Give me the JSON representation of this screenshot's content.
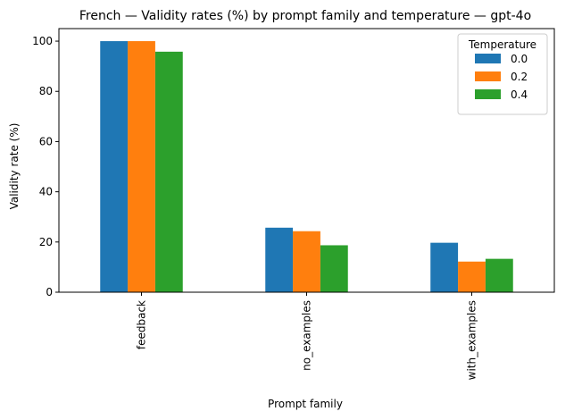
{
  "chart_data": {
    "type": "bar",
    "title": "French — Validity rates (%) by prompt family and temperature — gpt-4o",
    "xlabel": "Prompt family",
    "ylabel": "Validity rate (%)",
    "categories": [
      "feedback",
      "no_examples",
      "with_examples"
    ],
    "ylim": [
      0,
      105
    ],
    "yticks": [
      0,
      20,
      40,
      60,
      80,
      100
    ],
    "legend": {
      "title": "Temperature",
      "placement": "top-right"
    },
    "grid": false,
    "series": [
      {
        "name": "0.0",
        "color": "#1f77b4",
        "values": [
          100,
          25.7,
          19.7
        ]
      },
      {
        "name": "0.2",
        "color": "#ff7f0e",
        "values": [
          100,
          24.3,
          12.2
        ]
      },
      {
        "name": "0.4",
        "color": "#2ca02c",
        "values": [
          95.8,
          18.7,
          13.3
        ]
      }
    ]
  }
}
